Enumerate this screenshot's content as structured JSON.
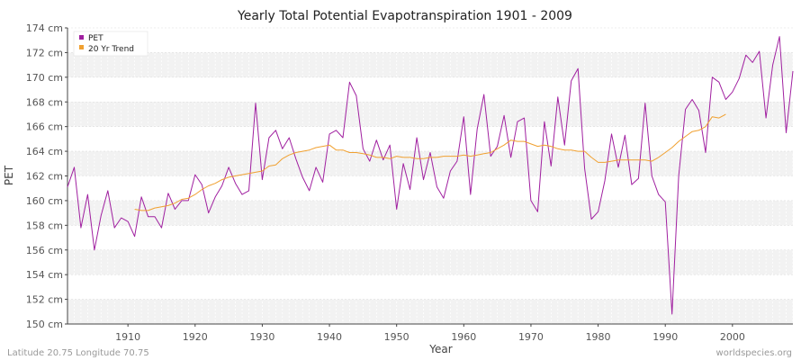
{
  "footer": {
    "left": "Latitude 20.75 Longitude 70.75",
    "right": "worldspecies.org"
  },
  "chart_data": {
    "type": "line",
    "title": "Yearly Total Potential Evapotranspiration 1901 - 2009",
    "xlabel": "Year",
    "ylabel": "PET",
    "xlim": [
      1901,
      2009
    ],
    "ylim": [
      150,
      174
    ],
    "x_ticks": [
      1910,
      1920,
      1930,
      1940,
      1950,
      1960,
      1970,
      1980,
      1990,
      2000
    ],
    "y_ticks": [
      150,
      152,
      154,
      156,
      158,
      160,
      162,
      164,
      166,
      168,
      170,
      172,
      174
    ],
    "y_tick_labels": [
      "150 cm",
      "152 cm",
      "154 cm",
      "156 cm",
      "158 cm",
      "160 cm",
      "162 cm",
      "164 cm",
      "166 cm",
      "168 cm",
      "170 cm",
      "172 cm",
      "174 cm"
    ],
    "grid": true,
    "legend_position": "top-left",
    "series": [
      {
        "name": "PET",
        "color": "#a020a0",
        "x": [
          1901,
          1902,
          1903,
          1904,
          1905,
          1906,
          1907,
          1908,
          1909,
          1910,
          1911,
          1912,
          1913,
          1914,
          1915,
          1916,
          1917,
          1918,
          1919,
          1920,
          1921,
          1922,
          1923,
          1924,
          1925,
          1926,
          1927,
          1928,
          1929,
          1930,
          1931,
          1932,
          1933,
          1934,
          1935,
          1936,
          1937,
          1938,
          1939,
          1940,
          1941,
          1942,
          1943,
          1944,
          1945,
          1946,
          1947,
          1948,
          1949,
          1950,
          1951,
          1952,
          1953,
          1954,
          1955,
          1956,
          1957,
          1958,
          1959,
          1960,
          1961,
          1962,
          1963,
          1964,
          1965,
          1966,
          1967,
          1968,
          1969,
          1970,
          1971,
          1972,
          1973,
          1974,
          1975,
          1976,
          1977,
          1978,
          1979,
          1980,
          1981,
          1982,
          1983,
          1984,
          1985,
          1986,
          1987,
          1988,
          1989,
          1990,
          1991,
          1992,
          1993,
          1994,
          1995,
          1996,
          1997,
          1998,
          1999,
          2000,
          2001,
          2002,
          2003,
          2004,
          2005,
          2006,
          2007,
          2008,
          2009
        ],
        "values": [
          161.1,
          162.7,
          157.8,
          160.5,
          156.0,
          158.8,
          160.8,
          157.8,
          158.6,
          158.3,
          157.1,
          160.3,
          158.7,
          158.7,
          157.8,
          160.6,
          159.3,
          160.0,
          160.0,
          162.1,
          161.3,
          159.0,
          160.3,
          161.2,
          162.7,
          161.4,
          160.5,
          160.8,
          167.9,
          161.7,
          165.1,
          165.7,
          164.2,
          165.1,
          163.4,
          161.9,
          160.8,
          162.7,
          161.5,
          165.4,
          165.7,
          165.1,
          169.6,
          168.5,
          164.2,
          163.2,
          164.9,
          163.3,
          164.5,
          159.3,
          163.0,
          160.9,
          165.1,
          161.7,
          163.9,
          161.1,
          160.2,
          162.4,
          163.2,
          166.8,
          160.5,
          165.8,
          168.6,
          163.6,
          164.4,
          166.9,
          163.5,
          166.4,
          166.7,
          160.0,
          159.1,
          166.4,
          162.8,
          168.4,
          164.5,
          169.7,
          170.7,
          162.6,
          158.5,
          159.1,
          161.6,
          165.4,
          162.7,
          165.3,
          161.3,
          161.8,
          167.9,
          162.0,
          160.5,
          159.9,
          150.8,
          162.0,
          167.4,
          168.2,
          167.3,
          163.9,
          170.0,
          169.6,
          168.2,
          168.8,
          169.9,
          171.8,
          171.2,
          172.1,
          166.7,
          171.0,
          173.3,
          165.5,
          170.5
        ]
      },
      {
        "name": "20 Yr Trend",
        "color": "#f0a030",
        "x": [
          1911,
          1912,
          1913,
          1914,
          1915,
          1916,
          1917,
          1918,
          1919,
          1920,
          1921,
          1922,
          1923,
          1924,
          1925,
          1926,
          1927,
          1928,
          1929,
          1930,
          1931,
          1932,
          1933,
          1934,
          1935,
          1936,
          1937,
          1938,
          1939,
          1940,
          1941,
          1942,
          1943,
          1944,
          1945,
          1946,
          1947,
          1948,
          1949,
          1950,
          1951,
          1952,
          1953,
          1954,
          1955,
          1956,
          1957,
          1958,
          1959,
          1960,
          1961,
          1962,
          1963,
          1964,
          1965,
          1966,
          1967,
          1968,
          1969,
          1970,
          1971,
          1972,
          1973,
          1974,
          1975,
          1976,
          1977,
          1978,
          1979,
          1980,
          1981,
          1982,
          1983,
          1984,
          1985,
          1986,
          1987,
          1988,
          1989,
          1990,
          1991,
          1992,
          1993,
          1994,
          1995,
          1996,
          1997,
          1998,
          1999
        ],
        "values": [
          159.3,
          159.2,
          159.2,
          159.4,
          159.5,
          159.6,
          159.8,
          160.1,
          160.2,
          160.5,
          160.9,
          161.2,
          161.4,
          161.7,
          161.9,
          162.0,
          162.1,
          162.2,
          162.3,
          162.4,
          162.8,
          162.9,
          163.4,
          163.7,
          163.9,
          164.0,
          164.1,
          164.3,
          164.4,
          164.5,
          164.1,
          164.1,
          163.9,
          163.9,
          163.8,
          163.7,
          163.5,
          163.5,
          163.4,
          163.6,
          163.5,
          163.5,
          163.4,
          163.4,
          163.5,
          163.5,
          163.6,
          163.6,
          163.6,
          163.7,
          163.6,
          163.7,
          163.8,
          163.9,
          164.2,
          164.5,
          164.9,
          164.8,
          164.8,
          164.6,
          164.4,
          164.5,
          164.4,
          164.2,
          164.1,
          164.1,
          164.0,
          164.0,
          163.5,
          163.1,
          163.1,
          163.2,
          163.3,
          163.3,
          163.3,
          163.3,
          163.3,
          163.2,
          163.5,
          163.9,
          164.3,
          164.8,
          165.2,
          165.6,
          165.7,
          166.0,
          166.8,
          166.7,
          167.0
        ]
      }
    ]
  }
}
